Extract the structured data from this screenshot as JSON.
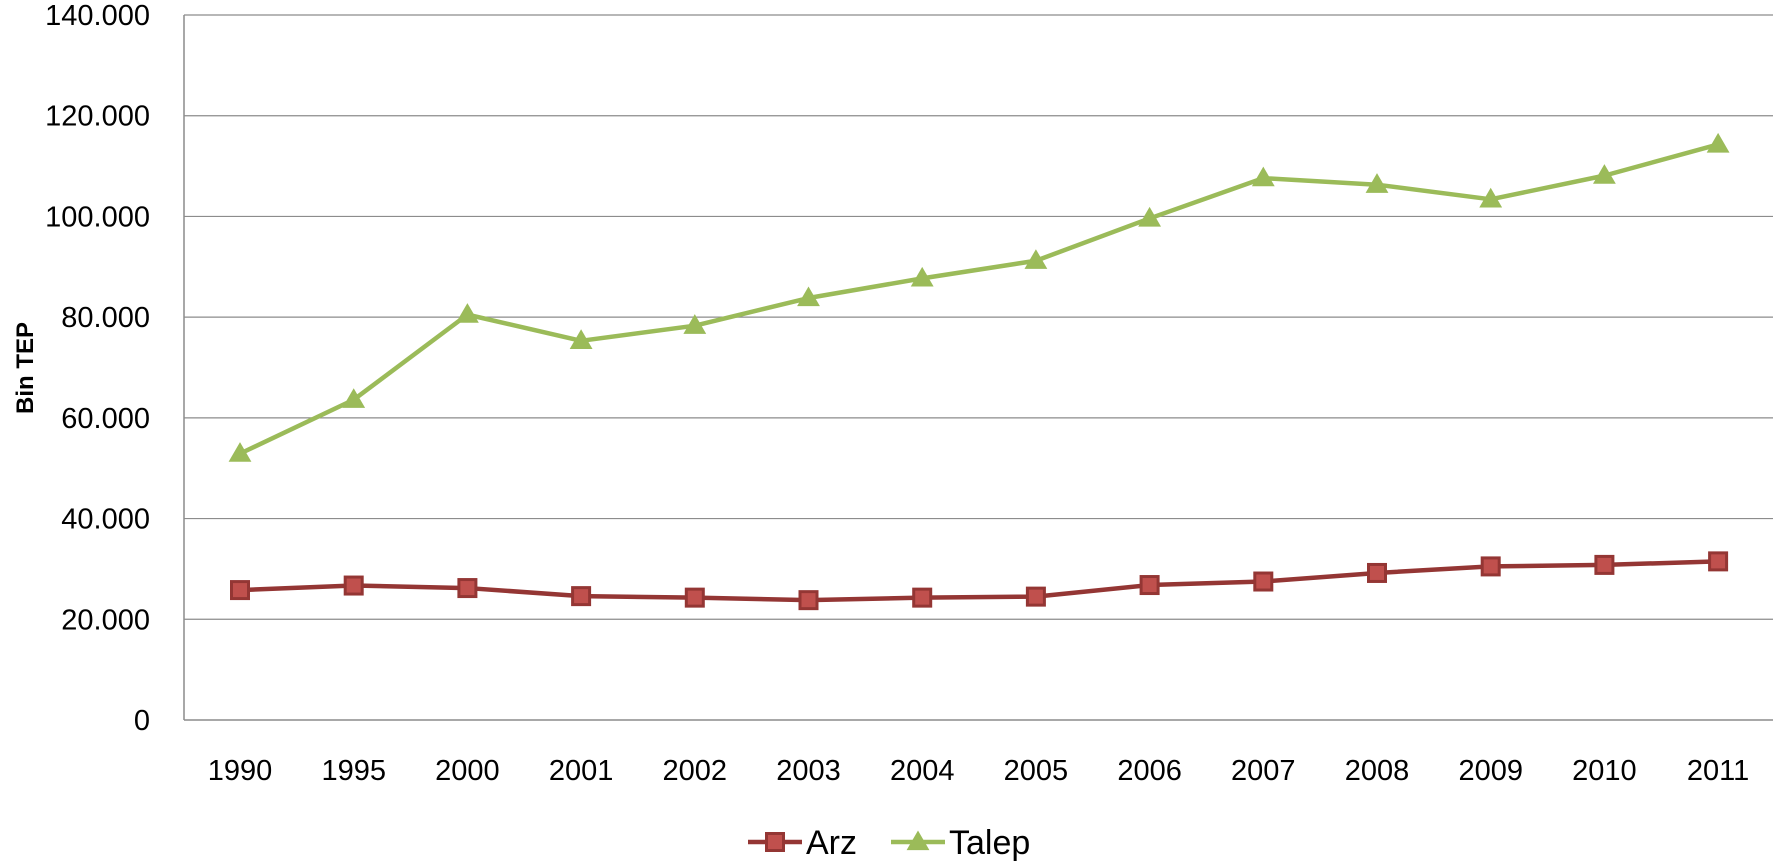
{
  "chart_data": {
    "type": "line",
    "title": "",
    "xlabel": "",
    "ylabel": "Bin TEP",
    "categories": [
      "1990",
      "1995",
      "2000",
      "2001",
      "2002",
      "2003",
      "2004",
      "2005",
      "2006",
      "2007",
      "2008",
      "2009",
      "2010",
      "2011"
    ],
    "yticks": [
      "0",
      "20.000",
      "40.000",
      "60.000",
      "80.000",
      "100.000",
      "120.000",
      "140.000"
    ],
    "ylim": [
      0,
      140000
    ],
    "grid": true,
    "legend_position": "bottom",
    "series": [
      {
        "name": "Arz",
        "color": "#943634",
        "fill": "#c0504d",
        "marker": "square",
        "values": [
          25800,
          26700,
          26200,
          24600,
          24300,
          23800,
          24300,
          24500,
          26800,
          27500,
          29200,
          30500,
          30800,
          31500
        ]
      },
      {
        "name": "Talep",
        "color": "#9bbb59",
        "fill": "#9bbb59",
        "marker": "triangle",
        "values": [
          52900,
          63600,
          80500,
          75300,
          78300,
          83800,
          87700,
          91200,
          99600,
          107600,
          106300,
          103400,
          108100,
          114300
        ]
      }
    ]
  }
}
